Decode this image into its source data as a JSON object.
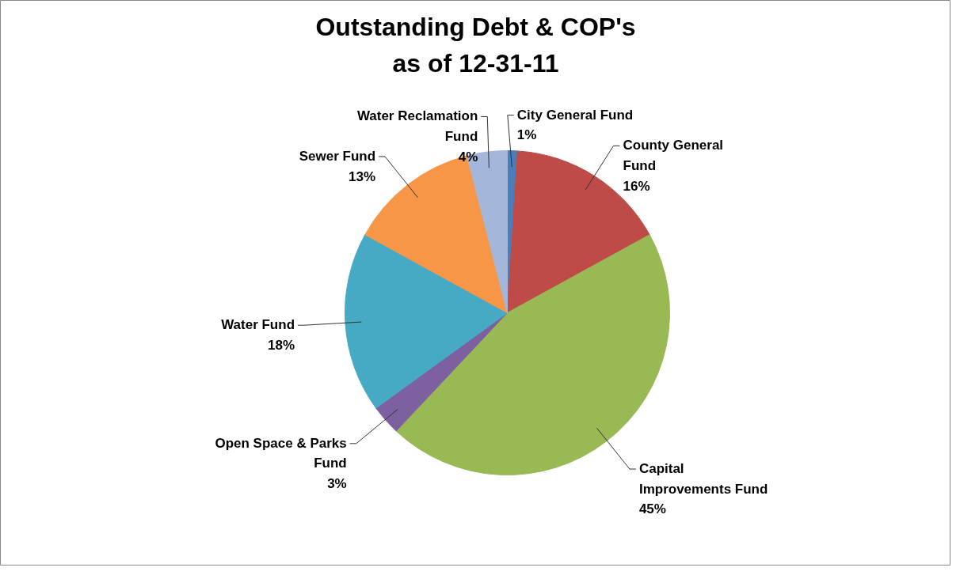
{
  "chart_data": {
    "type": "pie",
    "title": "Outstanding Debt & COP's as of 12-31-11",
    "categories": [
      "City General Fund",
      "County General Fund",
      "Capital Improvements Fund",
      "Open Space & Parks Fund",
      "Water Fund",
      "Sewer Fund",
      "Water Reclamation Fund"
    ],
    "values": [
      1,
      16,
      45,
      3,
      18,
      13,
      4
    ],
    "value_labels": [
      "1%",
      "16%",
      "45%",
      "3%",
      "18%",
      "13%",
      "4%"
    ],
    "colors": [
      "#4a7ebb",
      "#be4b48",
      "#98b954",
      "#7d60a0",
      "#46aac5",
      "#f79646",
      "#a5b6db"
    ]
  }
}
